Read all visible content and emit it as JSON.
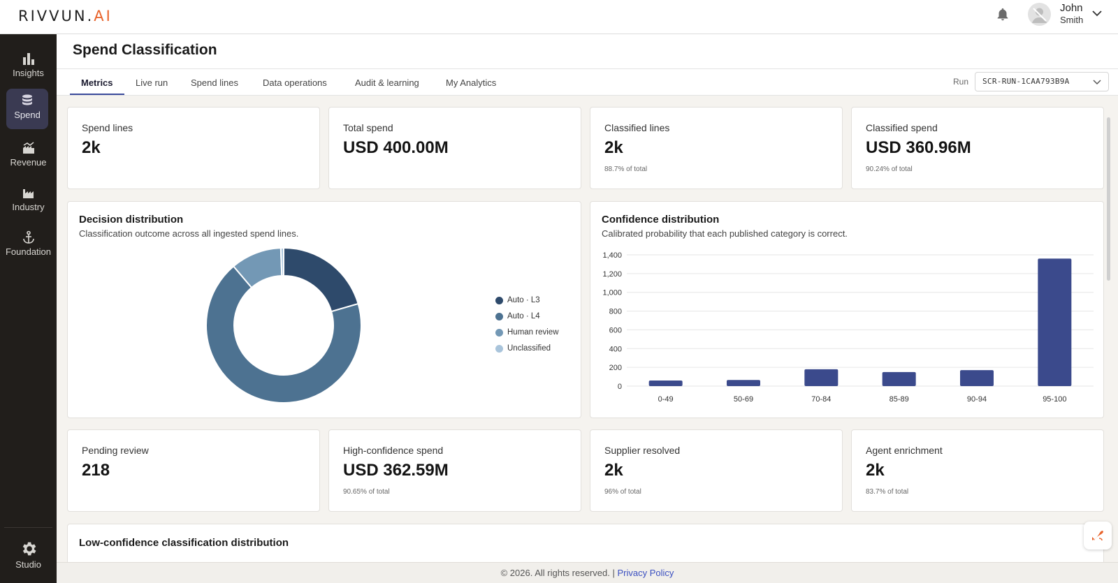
{
  "brand": {
    "logo_main": "RIVVUN.",
    "logo_accent": "AI",
    "accent_color": "#e8632b"
  },
  "user": {
    "first_name": "John",
    "last_name": "Smith"
  },
  "sidebar": {
    "items": [
      {
        "label": "Insights",
        "icon": "bar-chart-icon"
      },
      {
        "label": "Spend",
        "icon": "database-icon",
        "active": true
      },
      {
        "label": "Revenue",
        "icon": "factory-chart-icon"
      },
      {
        "label": "Industry",
        "icon": "industry-icon"
      },
      {
        "label": "Foundation",
        "icon": "anchor-icon"
      }
    ],
    "studio": {
      "label": "Studio",
      "icon": "gear-icon"
    }
  },
  "page": {
    "title": "Spend Classification"
  },
  "tabs": [
    {
      "label": "Metrics",
      "active": true
    },
    {
      "label": "Live run"
    },
    {
      "label": "Spend lines"
    },
    {
      "label": "Data operations"
    },
    {
      "label": "Audit & learning"
    },
    {
      "label": "My Analytics"
    }
  ],
  "run": {
    "label": "Run",
    "value": "SCR-RUN-1CAA793B9A"
  },
  "kpis_top": [
    {
      "label": "Spend lines",
      "value": "2k",
      "sub": ""
    },
    {
      "label": "Total spend",
      "value": "USD 400.00M",
      "sub": ""
    },
    {
      "label": "Classified lines",
      "value": "2k",
      "sub": "88.7% of total"
    },
    {
      "label": "Classified spend",
      "value": "USD 360.96M",
      "sub": "90.24% of total"
    }
  ],
  "decision": {
    "title": "Decision distribution",
    "subtitle": "Classification outcome across all ingested spend lines."
  },
  "confidence": {
    "title": "Confidence distribution",
    "subtitle": "Calibrated probability that each published category is correct."
  },
  "chart_data": [
    {
      "type": "pie",
      "variant": "donut",
      "categories": [
        "Auto · L3",
        "Auto · L4",
        "Human review",
        "Unclassified"
      ],
      "values": [
        20.5,
        68.3,
        10.6,
        0.6
      ],
      "colors": [
        "#2e4a6b",
        "#4d7291",
        "#7398b5",
        "#a9c4db"
      ],
      "legend": "right"
    },
    {
      "type": "bar",
      "categories": [
        "0-49",
        "50-69",
        "70-84",
        "85-89",
        "90-94",
        "95-100"
      ],
      "values": [
        60,
        65,
        180,
        150,
        170,
        1360
      ],
      "ylim": [
        0,
        1400
      ],
      "yticks": [
        "0",
        "200",
        "400",
        "600",
        "800",
        "1,000",
        "1,200",
        "1,400"
      ],
      "ytick_values": [
        0,
        200,
        400,
        600,
        800,
        1000,
        1200,
        1400
      ],
      "color": "#3b4a8c",
      "grid": true
    }
  ],
  "kpis_bottom": [
    {
      "label": "Pending review",
      "value": "218",
      "sub": ""
    },
    {
      "label": "High-confidence spend",
      "value": "USD 362.59M",
      "sub": "90.65% of total"
    },
    {
      "label": "Supplier resolved",
      "value": "2k",
      "sub": "96% of total"
    },
    {
      "label": "Agent enrichment",
      "value": "2k",
      "sub": "83.7% of total"
    }
  ],
  "low_conf": {
    "title": "Low-confidence classification distribution"
  },
  "footer": {
    "text": "© 2026. All rights reserved. | ",
    "link": "Privacy Policy"
  }
}
